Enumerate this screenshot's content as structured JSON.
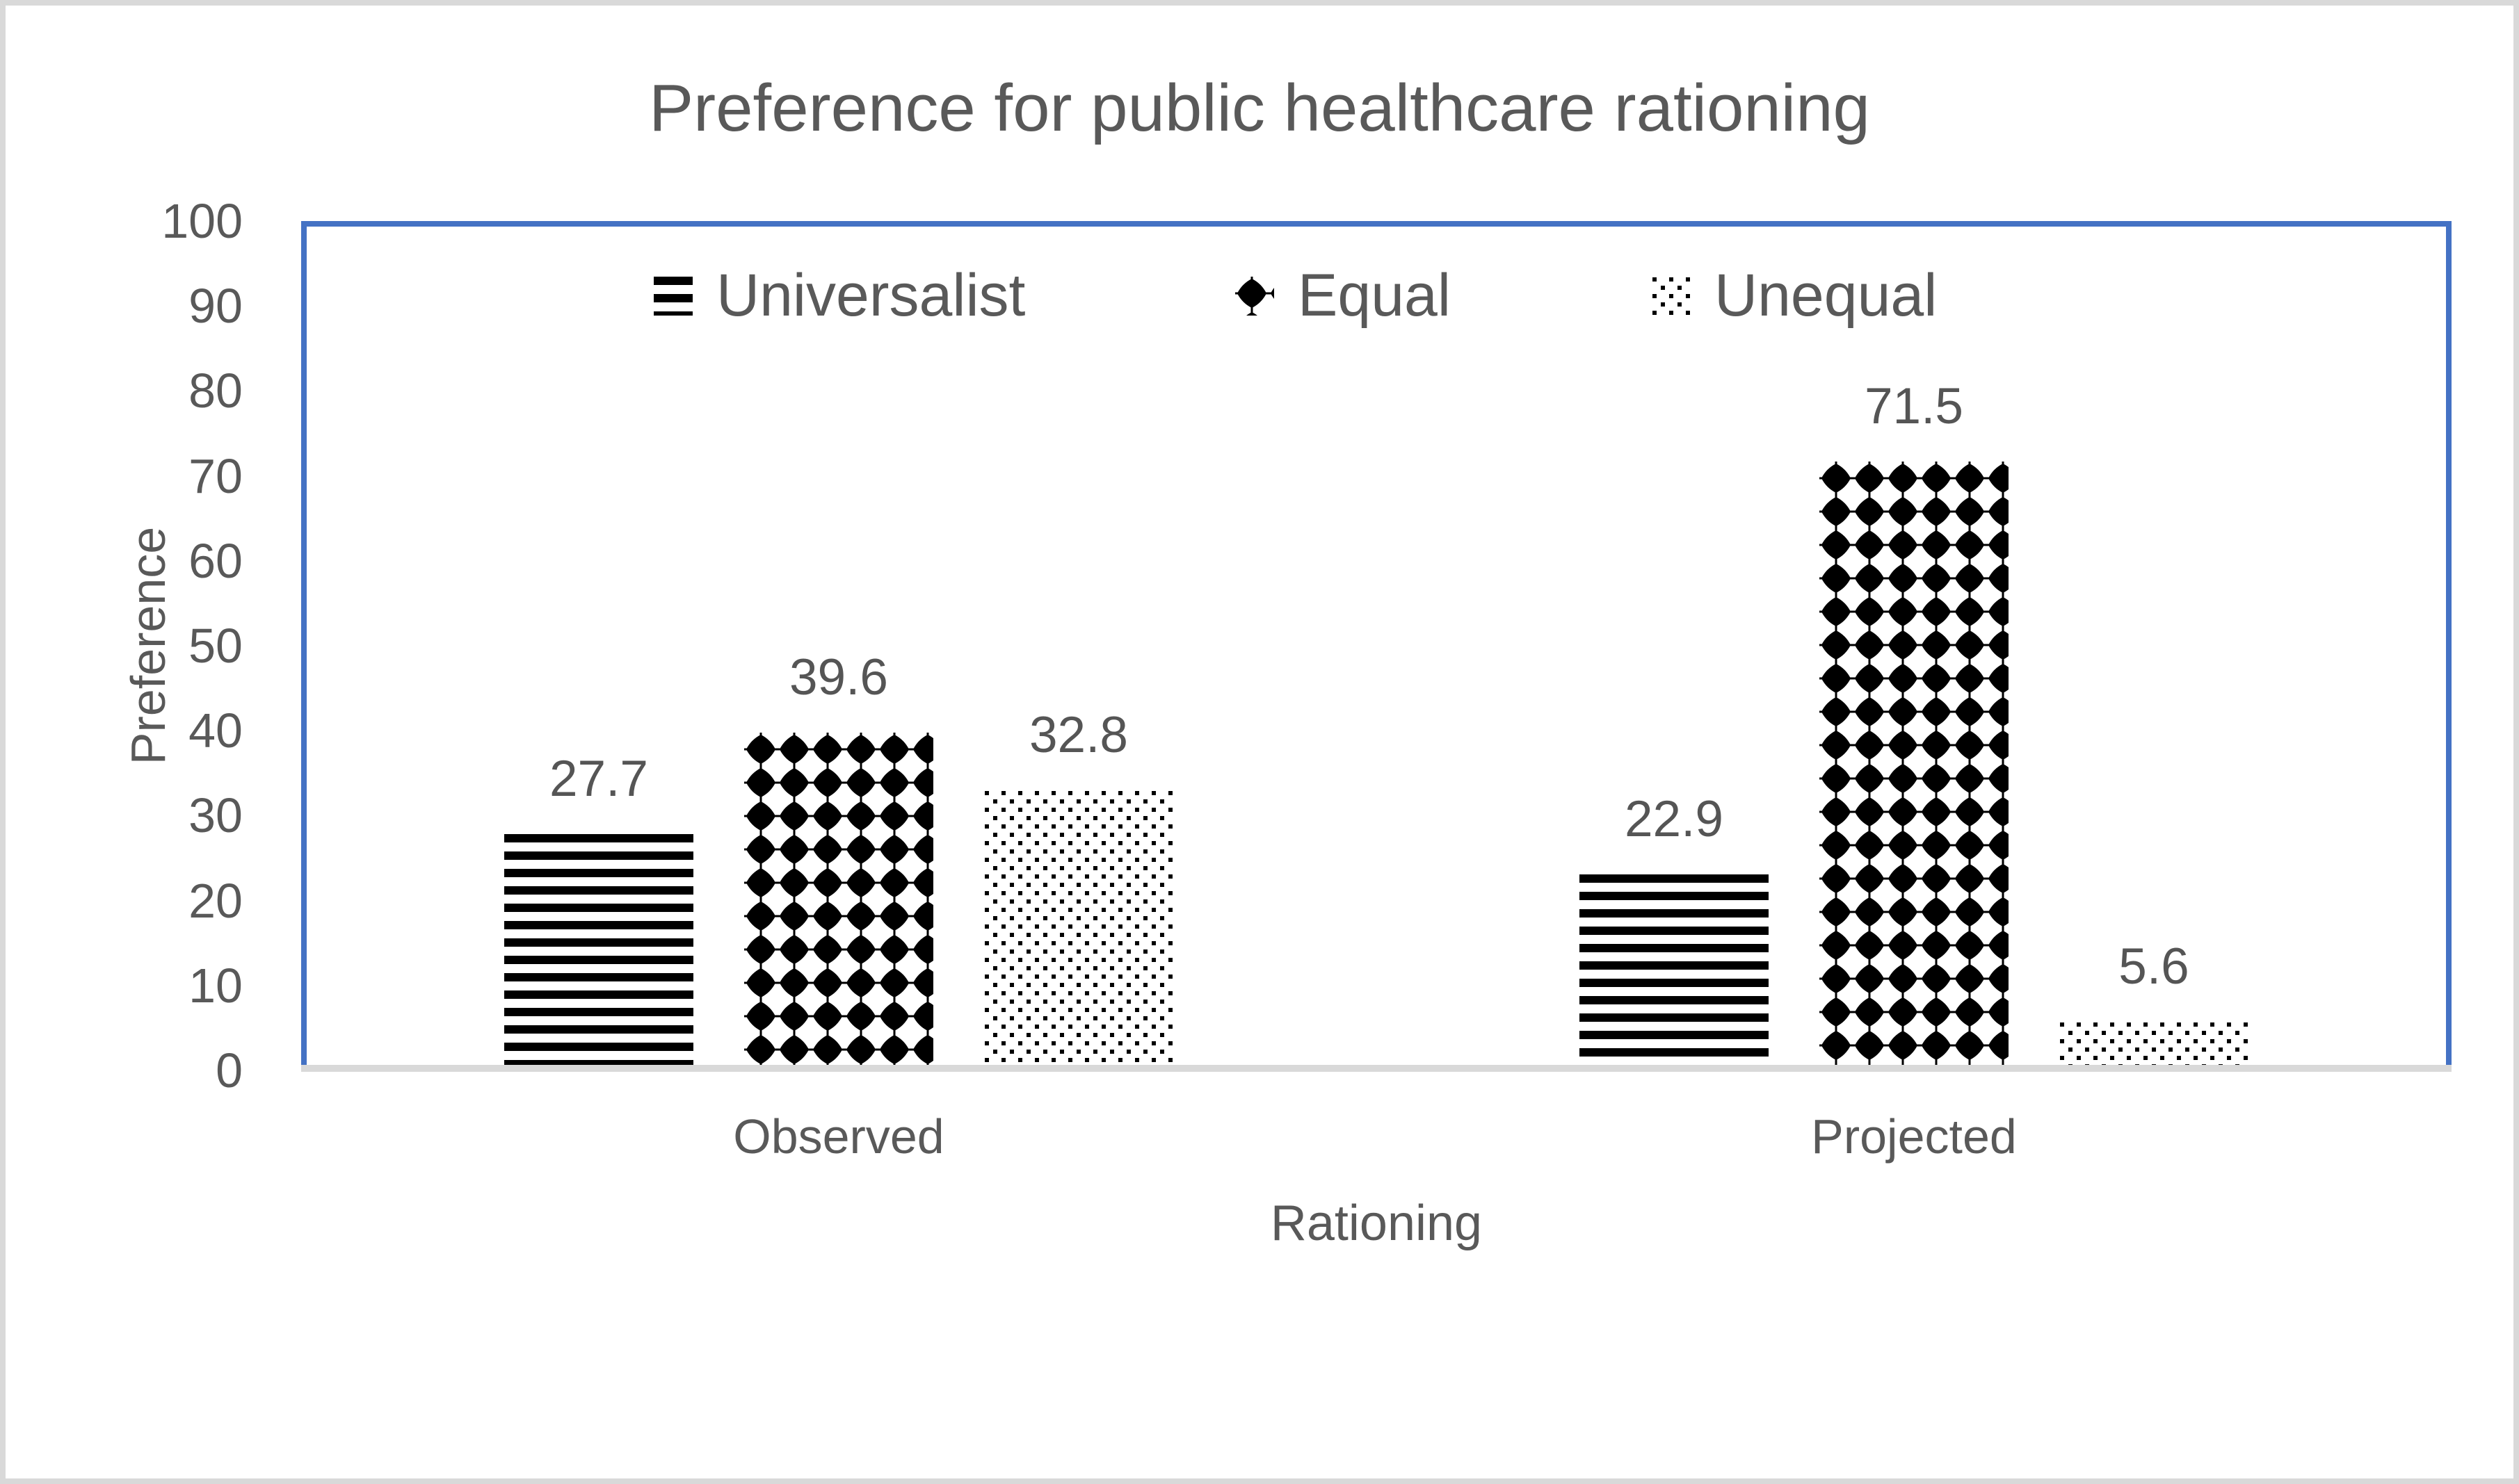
{
  "chart": {
    "frame_border_color": "#d9d9d9",
    "plot_border_color": "#4472c4",
    "axis_line_color": "#d9d9d9",
    "text_color": "#595959",
    "pattern_color": "#000000",
    "background_color": "#ffffff"
  },
  "chart_data": {
    "type": "bar",
    "title": "Preference for public healthcare rationing",
    "categories": [
      "Observed",
      "Projected"
    ],
    "series": [
      {
        "name": "Universalist",
        "pattern": "horizontal-stripes",
        "values": [
          27.7,
          22.9
        ]
      },
      {
        "name": "Equal",
        "pattern": "solid-diamonds",
        "values": [
          39.6,
          71.5
        ]
      },
      {
        "name": "Unequal",
        "pattern": "dotted-grid",
        "values": [
          32.8,
          5.6
        ]
      }
    ],
    "data_labels": [
      "27.7",
      "39.6",
      "32.8",
      "22.9",
      "71.5",
      "5.6"
    ],
    "xlabel": "Rationing",
    "ylabel": "Preference",
    "ylim": [
      0,
      100
    ],
    "ytick_step": 10,
    "y_tick_labels": [
      "0",
      "10",
      "20",
      "30",
      "40",
      "50",
      "60",
      "70",
      "80",
      "90",
      "100"
    ],
    "grid": false,
    "legend_position": "top-inside",
    "legend_entries": [
      "Universalist",
      "Equal",
      "Unequal"
    ]
  }
}
